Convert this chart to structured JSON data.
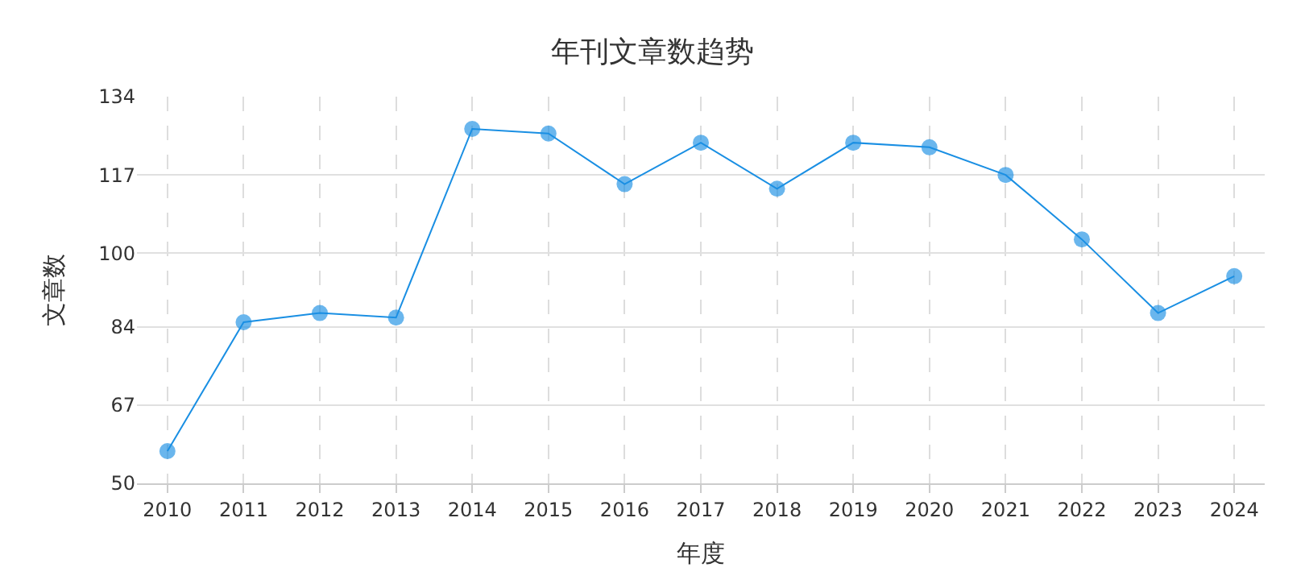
{
  "chart_data": {
    "type": "line",
    "title": "年刊文章数趋势",
    "xlabel": "年度",
    "ylabel": "文章数",
    "categories": [
      "2010",
      "2011",
      "2012",
      "2013",
      "2014",
      "2015",
      "2016",
      "2017",
      "2018",
      "2019",
      "2020",
      "2021",
      "2022",
      "2023",
      "2024"
    ],
    "series": [
      {
        "color": "#1a8fe3",
        "values": [
          57,
          85,
          87,
          86,
          127,
          126,
          115,
          124,
          114,
          124,
          123,
          117,
          103,
          87,
          95
        ]
      }
    ],
    "ylim": [
      50,
      134
    ],
    "yticks": [
      50,
      67,
      84,
      100,
      117,
      134
    ],
    "grid": true,
    "legend": false,
    "marker": "circle",
    "line_style": "solid"
  }
}
